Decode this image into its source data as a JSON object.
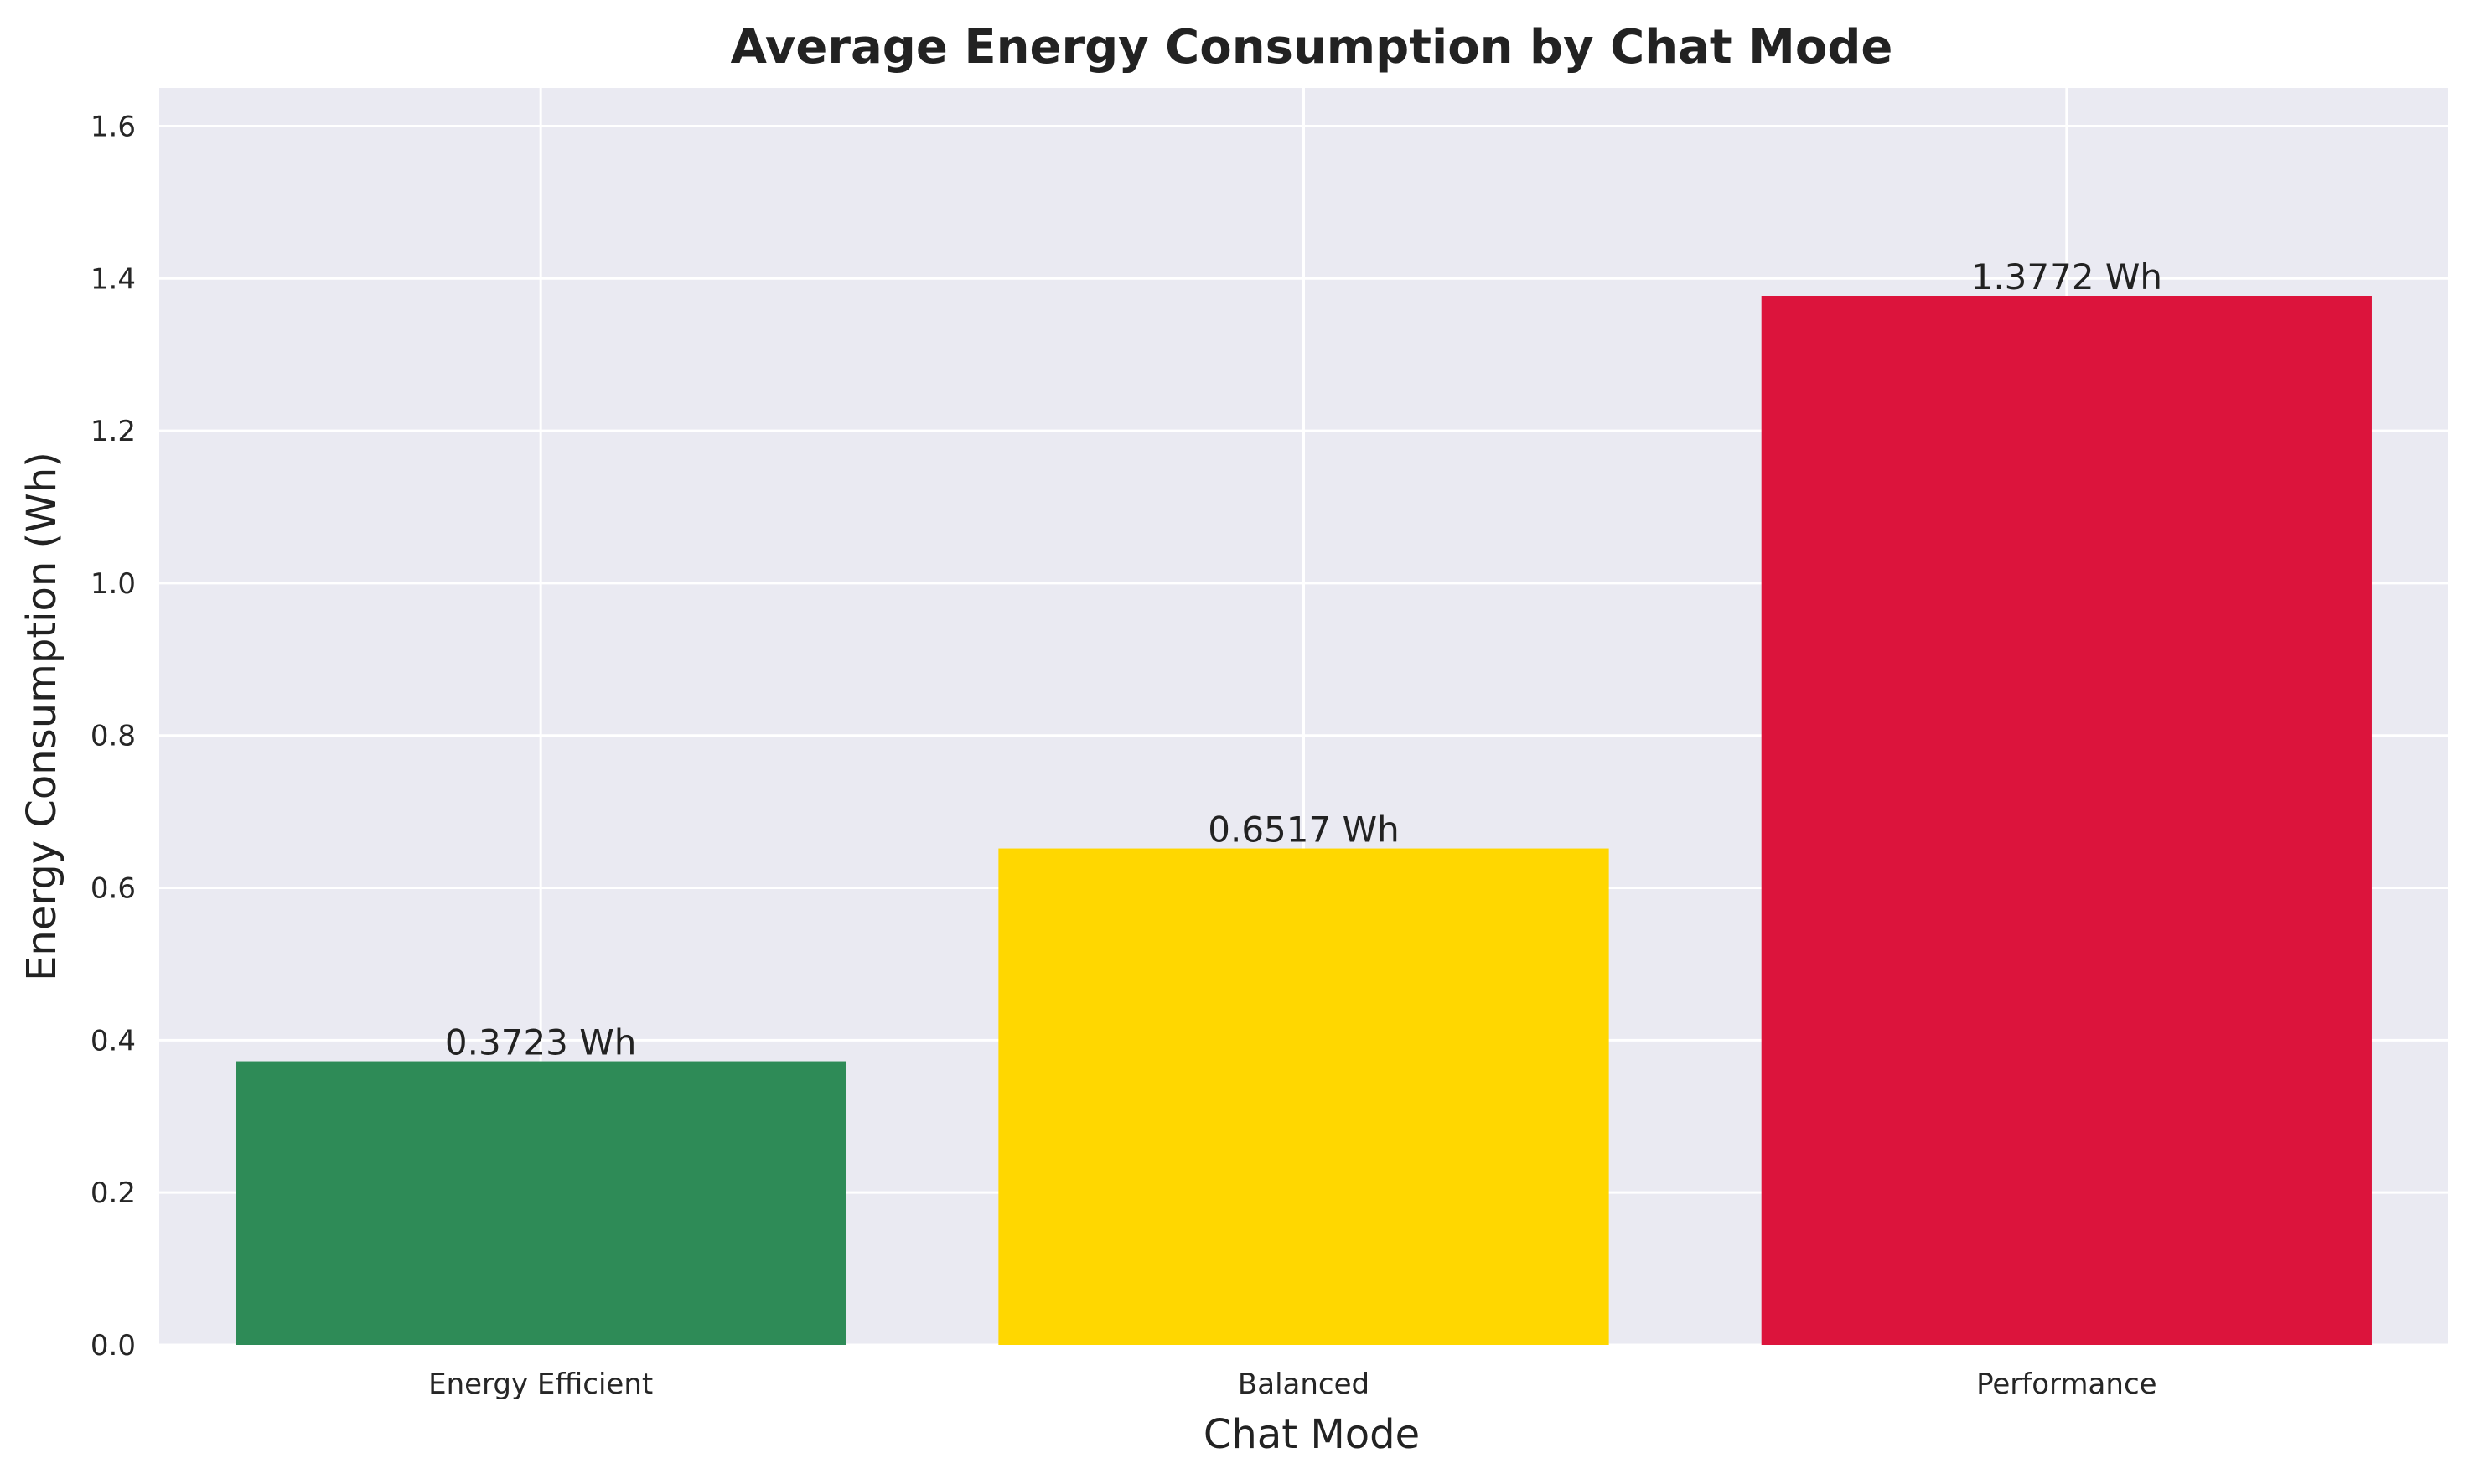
{
  "chart_data": {
    "type": "bar",
    "title": "Average Energy Consumption by Chat Mode",
    "xlabel": "Chat Mode",
    "ylabel": "Energy Consumption (Wh)",
    "categories": [
      "Energy Efficient",
      "Balanced",
      "Performance"
    ],
    "values": [
      0.3723,
      0.6517,
      1.3772
    ],
    "value_labels": [
      "0.3723 Wh",
      "0.6517 Wh",
      "1.3772 Wh"
    ],
    "colors": [
      "#2e8b57",
      "#ffd700",
      "#dc143c"
    ],
    "ylim": [
      0,
      1.65
    ],
    "yticks": [
      "0.0",
      "0.2",
      "0.4",
      "0.6",
      "0.8",
      "1.0",
      "1.2",
      "1.4",
      "1.6"
    ],
    "ytick_values": [
      0,
      0.2,
      0.4,
      0.6,
      0.8,
      1.0,
      1.2,
      1.4,
      1.6
    ],
    "grid": true,
    "background": "#eaeaf2",
    "grid_color": "#ffffff"
  }
}
